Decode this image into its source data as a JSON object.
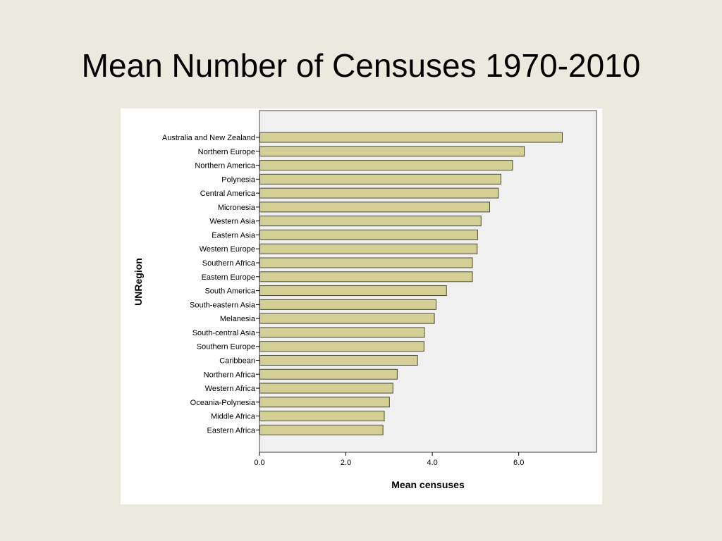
{
  "slide": {
    "title": "Mean Number of Censuses 1970-2010"
  },
  "colors": {
    "background": "#ece9df",
    "panel": "#ffffff",
    "plot_area": "#f0f0f0",
    "bar_fill": "#d4cf94",
    "bar_stroke": "#4a4a3c"
  },
  "chart_data": {
    "type": "bar",
    "orientation": "horizontal",
    "title": "",
    "xlabel": "Mean censuses",
    "ylabel": "UNRegion",
    "xlim": [
      0,
      7.8
    ],
    "xticks": [
      0.0,
      2.0,
      4.0,
      6.0
    ],
    "xtick_labels": [
      "0.0",
      "2.0",
      "4.0",
      "6.0"
    ],
    "grid": false,
    "categories": [
      "Australia and New Zealand",
      "Northern Europe",
      "Northern America",
      "Polynesia",
      "Central America",
      "Micronesia",
      "Western Asia",
      "Eastern Asia",
      "Western Europe",
      "Southern Africa",
      "Eastern Europe",
      "South America",
      "South-eastern Asia",
      "Melanesia",
      "South-central Asia",
      "Southern Europe",
      "Caribbean",
      "Northern Africa",
      "Western Africa",
      "Oceania-Polynesia",
      "Middle Africa",
      "Eastern Africa"
    ],
    "values": [
      7.0,
      6.12,
      5.85,
      5.58,
      5.52,
      5.32,
      5.12,
      5.04,
      5.03,
      4.92,
      4.92,
      4.32,
      4.08,
      4.04,
      3.81,
      3.8,
      3.65,
      3.18,
      3.08,
      3.0,
      2.88,
      2.85
    ]
  }
}
